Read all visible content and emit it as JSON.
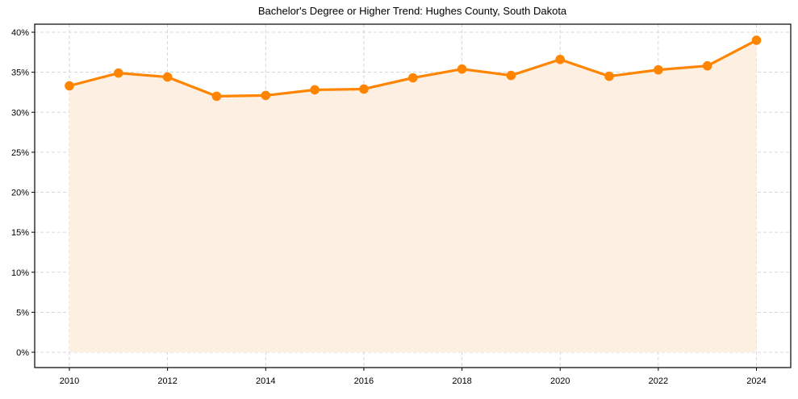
{
  "chart_data": {
    "type": "line",
    "title": "Bachelor's Degree or Higher Trend: Hughes County, South Dakota",
    "xlabel": "",
    "ylabel": "",
    "x": [
      2010,
      2011,
      2012,
      2013,
      2014,
      2015,
      2016,
      2017,
      2018,
      2019,
      2020,
      2021,
      2022,
      2023,
      2024
    ],
    "series": [
      {
        "name": "Bachelor's Degree or Higher",
        "values": [
          33.3,
          34.9,
          34.4,
          32.0,
          32.1,
          32.8,
          32.9,
          34.3,
          35.4,
          34.6,
          36.6,
          34.5,
          35.3,
          35.8,
          39.0
        ],
        "color": "#FF8400",
        "fill_color": "#FDF0E2",
        "marker": "circle",
        "area_fill": true
      }
    ],
    "xticks": [
      2010,
      2012,
      2014,
      2016,
      2018,
      2020,
      2022,
      2024
    ],
    "yticks": [
      0,
      5,
      10,
      15,
      20,
      25,
      30,
      35,
      40
    ],
    "ytick_labels": [
      "0%",
      "5%",
      "10%",
      "15%",
      "20%",
      "25%",
      "30%",
      "35%",
      "40%"
    ],
    "xlim": [
      2009.5,
      2024.7
    ],
    "ylim": [
      -1.9,
      41.0
    ],
    "grid": true,
    "grid_style": "dashed",
    "legend": null
  }
}
